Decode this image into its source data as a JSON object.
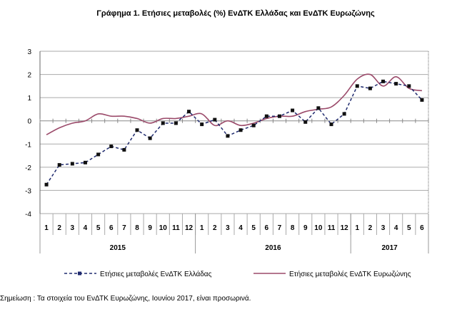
{
  "chart_data": {
    "type": "line",
    "title": "Γράφημα 1. Ετήσιες μεταβολές (%) ΕνΔΤΚ Ελλάδας και ΕνΔΤΚ Ευρωζώνης",
    "months": [
      "1",
      "2",
      "3",
      "4",
      "5",
      "6",
      "7",
      "8",
      "9",
      "10",
      "11",
      "12",
      "1",
      "2",
      "3",
      "4",
      "5",
      "6",
      "7",
      "8",
      "9",
      "10",
      "11",
      "12",
      "1",
      "2",
      "3",
      "4",
      "5",
      "6"
    ],
    "years": [
      {
        "label": "2015",
        "count": 12
      },
      {
        "label": "2016",
        "count": 12
      },
      {
        "label": "2017",
        "count": 6
      }
    ],
    "ylim": [
      -4,
      3
    ],
    "yticks": [
      "3",
      "2",
      "1",
      "0",
      "-1",
      "-2",
      "-3",
      "-4"
    ],
    "grid": true,
    "legend_position": "bottom",
    "series": [
      {
        "name": "Ετήσιες μεταβολές ΕνΔΤΚ Ελλάδας",
        "color": "#1f2a6e",
        "style": "dashed-markers",
        "values": [
          -2.75,
          -1.9,
          -1.85,
          -1.8,
          -1.45,
          -1.1,
          -1.25,
          -0.4,
          -0.75,
          -0.1,
          -0.1,
          0.4,
          -0.15,
          0.05,
          -0.65,
          -0.4,
          -0.2,
          0.2,
          0.2,
          0.45,
          -0.05,
          0.55,
          -0.15,
          0.3,
          1.5,
          1.4,
          1.7,
          1.6,
          1.5,
          0.9
        ]
      },
      {
        "name": "Ετήσιες μεταβολές ΕνΔΤΚ Ευρωζώνης",
        "color": "#9b4a6a",
        "style": "smooth",
        "values": [
          -0.6,
          -0.3,
          -0.1,
          0.0,
          0.3,
          0.2,
          0.2,
          0.1,
          -0.1,
          0.1,
          0.1,
          0.2,
          0.3,
          -0.2,
          0.0,
          -0.2,
          -0.1,
          0.1,
          0.2,
          0.2,
          0.4,
          0.5,
          0.6,
          1.1,
          1.8,
          2.0,
          1.5,
          1.9,
          1.4,
          1.3
        ]
      }
    ]
  },
  "note": "Σημείωση :  Τα στοιχεία του ΕνΔΤΚ Ευρωζώνης, Ιουνίου 2017, είναι προσωρινά."
}
